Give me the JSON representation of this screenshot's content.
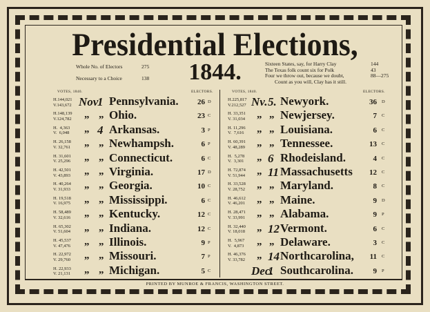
{
  "title": "Presidential Elections,",
  "year": "1844.",
  "summary_left": [
    {
      "label": "Whole No. of Electors",
      "value": "275"
    },
    {
      "label": "Necessary to a Choice",
      "value": "138"
    }
  ],
  "summary_right": [
    {
      "text": "Sixteen States, say, for Harry Clay",
      "value": "144"
    },
    {
      "text": "The Texas folk count six for Polk",
      "value": "43"
    },
    {
      "text": "Four we throw out, because we doubt,",
      "value": "88—275"
    },
    {
      "text": "Count as you will, Clay has it still.",
      "value": null
    }
  ],
  "column_headers": {
    "votes": "VOTES, 1840.",
    "electors": "ELECTORS."
  },
  "left_rows": [
    {
      "votes": [
        "H.144,021",
        "V.143,672"
      ],
      "month": "Nov",
      "day": "1",
      "state": "Pennsylvania.",
      "electors": "26",
      "party": "D"
    },
    {
      "votes": [
        "H.148,139",
        "V.124,782"
      ],
      "month": "„",
      "day": "„",
      "state": "Ohio.",
      "electors": "23",
      "party": "C"
    },
    {
      "votes": [
        "H.  4,363",
        "V.  6,048"
      ],
      "month": "„",
      "day": "4",
      "state": "Arkansas.",
      "electors": "3",
      "party": "P"
    },
    {
      "votes": [
        "H. 26,158",
        "V. 32,761"
      ],
      "month": "„",
      "day": "„",
      "state": "Newhampsh.",
      "electors": "6",
      "party": "P"
    },
    {
      "votes": [
        "H. 31,601",
        "V. 25,296"
      ],
      "month": "„",
      "day": "„",
      "state": "Connecticut.",
      "electors": "6",
      "party": "C"
    },
    {
      "votes": [
        "H. 42,501",
        "V. 43,893"
      ],
      "month": "„",
      "day": "„",
      "state": "Virginia.",
      "electors": "17",
      "party": "D"
    },
    {
      "votes": [
        "H. 40,264",
        "V. 31,933"
      ],
      "month": "„",
      "day": "„",
      "state": "Georgia.",
      "electors": "10",
      "party": "C"
    },
    {
      "votes": [
        "H. 19,518",
        "V. 16,975"
      ],
      "month": "„",
      "day": "„",
      "state": "Mississippi.",
      "electors": "6",
      "party": "C"
    },
    {
      "votes": [
        "H. 58,489",
        "V. 32,616"
      ],
      "month": "„",
      "day": "„",
      "state": "Kentucky.",
      "electors": "12",
      "party": "C"
    },
    {
      "votes": [
        "H. 65,302",
        "V. 51,604"
      ],
      "month": "„",
      "day": "„",
      "state": "Indiana.",
      "electors": "12",
      "party": "C"
    },
    {
      "votes": [
        "H. 45,537",
        "V. 47,476"
      ],
      "month": "„",
      "day": "„",
      "state": "Illinois.",
      "electors": "9",
      "party": "P"
    },
    {
      "votes": [
        "H. 22,972",
        "V. 29,760"
      ],
      "month": "„",
      "day": "„",
      "state": "Missouri.",
      "electors": "7",
      "party": "P"
    },
    {
      "votes": [
        "H. 22,933",
        "V. 21,131"
      ],
      "month": "„",
      "day": "„",
      "state": "Michigan.",
      "electors": "5",
      "party": "C"
    }
  ],
  "right_rows": [
    {
      "votes": [
        "H.225,817",
        "V.212,527"
      ],
      "month": "Nv.",
      "day": "5.",
      "state": "Newyork.",
      "electors": "36",
      "party": "D"
    },
    {
      "votes": [
        "H. 33,351",
        "V. 31,034"
      ],
      "month": "„",
      "day": "„",
      "state": "Newjersey.",
      "electors": "7",
      "party": "C"
    },
    {
      "votes": [
        "H. 11,296",
        "V.  7,616"
      ],
      "month": "„",
      "day": "„",
      "state": "Louisiana.",
      "electors": "6",
      "party": "C"
    },
    {
      "votes": [
        "H. 60,391",
        "V. 48,289"
      ],
      "month": "„",
      "day": "„",
      "state": "Tennessee.",
      "electors": "13",
      "party": "C"
    },
    {
      "votes": [
        "H.  5,278",
        "V.  3,301"
      ],
      "month": "„",
      "day": "6",
      "state": "Rhodeisland.",
      "electors": "4",
      "party": "C"
    },
    {
      "votes": [
        "H. 72,874",
        "V. 51,944"
      ],
      "month": "„",
      "day": "11",
      "state": "Massachusetts",
      "electors": "12",
      "party": "C"
    },
    {
      "votes": [
        "H. 33,528",
        "V. 28,752"
      ],
      "month": "„",
      "day": "„",
      "state": "Maryland.",
      "electors": "8",
      "party": "C"
    },
    {
      "votes": [
        "H. 46,612",
        "V. 46,201"
      ],
      "month": "„",
      "day": "„",
      "state": "Maine.",
      "electors": "9",
      "party": "D"
    },
    {
      "votes": [
        "H. 28,471",
        "V. 33,991"
      ],
      "month": "„",
      "day": "„",
      "state": "Alabama.",
      "electors": "9",
      "party": "P"
    },
    {
      "votes": [
        "H. 32,440",
        "V. 18,018"
      ],
      "month": "„",
      "day": "12",
      "state": "Vermont.",
      "electors": "6",
      "party": "C"
    },
    {
      "votes": [
        "H.  5,967",
        "V.  4,873"
      ],
      "month": "„",
      "day": "„",
      "state": "Delaware.",
      "electors": "3",
      "party": "C"
    },
    {
      "votes": [
        "H. 46,376",
        "V. 33,782"
      ],
      "month": "„",
      "day": "14",
      "state": "Northcarolina,",
      "electors": "11",
      "party": "C"
    },
    {
      "votes": null,
      "month": "Dec.",
      "day": "1",
      "state": "Southcarolina.",
      "electors": "9",
      "party": "P"
    }
  ],
  "footer": "PRINTED BY MUNROE & FRANCIS, WASHINGTON STREET."
}
